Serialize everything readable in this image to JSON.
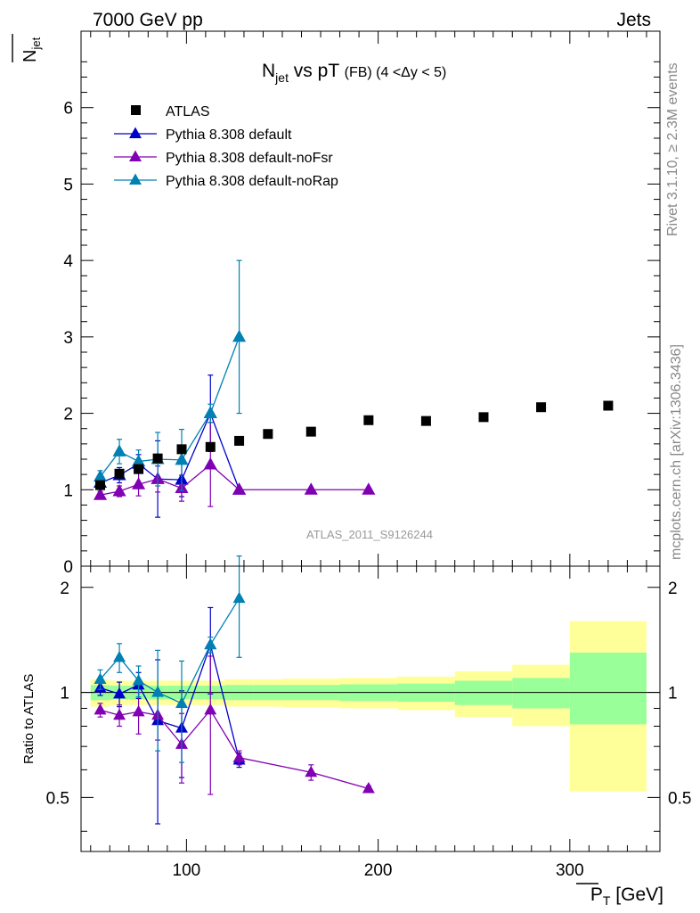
{
  "header": {
    "left": "7000 GeV pp",
    "right": "Jets",
    "side_top": "Rivet 3.1.10, ≥ 2.3M events",
    "side_bottom": "mcplots.cern.ch [arXiv:1306.3436]",
    "watermark": "ATLAS_2011_S9126244"
  },
  "chart_data": {
    "type": "scatter",
    "title": {
      "prefix": "N",
      "sub": "jet",
      "main": " vs pT ",
      "fb": "(FB)",
      "range": " (4 <Δy < 5)"
    },
    "ylabel_main": {
      "base": "N",
      "sub": "jet"
    },
    "xlabel": {
      "base": "P",
      "sub": "T",
      "unit": " [GeV]"
    },
    "ylabel_ratio": "Ratio to ATLAS",
    "xlim": [
      45,
      347
    ],
    "ylim_main": [
      0,
      7
    ],
    "ylim_ratio": [
      0.35,
      2.3
    ],
    "x_ticks": [
      100,
      200,
      300
    ],
    "y_ticks_main": [
      0,
      1,
      2,
      3,
      4,
      5,
      6
    ],
    "y_ticks_ratio": [
      0.5,
      1,
      2
    ],
    "legend_position": "top-left",
    "data": {
      "name": "ATLAS",
      "x": [
        55,
        65,
        75,
        85,
        97.5,
        112.5,
        127.5,
        142.5,
        165,
        195,
        225,
        255,
        285,
        320
      ],
      "y": [
        1.06,
        1.21,
        1.27,
        1.41,
        1.53,
        1.56,
        1.64,
        1.73,
        1.76,
        1.91,
        1.9,
        1.95,
        2.08,
        2.1
      ],
      "bands": [
        {
          "x": [
            50,
            60
          ],
          "yellow": [
            0.91,
            1.09
          ],
          "green": [
            0.95,
            1.05
          ]
        },
        {
          "x": [
            60,
            70
          ],
          "yellow": [
            0.92,
            1.08
          ],
          "green": [
            0.955,
            1.045
          ]
        },
        {
          "x": [
            70,
            80
          ],
          "yellow": [
            0.92,
            1.08
          ],
          "green": [
            0.955,
            1.045
          ]
        },
        {
          "x": [
            80,
            90
          ],
          "yellow": [
            0.92,
            1.08
          ],
          "green": [
            0.955,
            1.045
          ]
        },
        {
          "x": [
            90,
            105
          ],
          "yellow": [
            0.92,
            1.08
          ],
          "green": [
            0.955,
            1.045
          ]
        },
        {
          "x": [
            105,
            120
          ],
          "yellow": [
            0.92,
            1.08
          ],
          "green": [
            0.955,
            1.045
          ]
        },
        {
          "x": [
            120,
            135
          ],
          "yellow": [
            0.91,
            1.09
          ],
          "green": [
            0.95,
            1.05
          ]
        },
        {
          "x": [
            135,
            150
          ],
          "yellow": [
            0.91,
            1.09
          ],
          "green": [
            0.95,
            1.05
          ]
        },
        {
          "x": [
            150,
            180
          ],
          "yellow": [
            0.905,
            1.095
          ],
          "green": [
            0.95,
            1.05
          ]
        },
        {
          "x": [
            180,
            210
          ],
          "yellow": [
            0.9,
            1.1
          ],
          "green": [
            0.945,
            1.055
          ]
        },
        {
          "x": [
            210,
            240
          ],
          "yellow": [
            0.89,
            1.11
          ],
          "green": [
            0.94,
            1.06
          ]
        },
        {
          "x": [
            240,
            270
          ],
          "yellow": [
            0.85,
            1.15
          ],
          "green": [
            0.92,
            1.08
          ]
        },
        {
          "x": [
            270,
            300
          ],
          "yellow": [
            0.8,
            1.2
          ],
          "green": [
            0.9,
            1.1
          ]
        },
        {
          "x": [
            300,
            340
          ],
          "yellow": [
            0.52,
            1.6
          ],
          "green": [
            0.81,
            1.3
          ]
        }
      ]
    },
    "series": [
      {
        "name": "Pythia 8.308 default",
        "color": "#0000cc",
        "x": [
          55,
          65,
          75,
          85,
          97.5,
          112.5,
          127.5
        ],
        "y": [
          1.09,
          1.19,
          1.34,
          1.14,
          1.13,
          2.0,
          1.0
        ],
        "err": [
          0.06,
          0.1,
          0.12,
          0.5,
          0.22,
          0.5,
          0.03
        ],
        "ratio": [
          1.03,
          0.99,
          1.05,
          0.83,
          0.79,
          1.37,
          0.64
        ],
        "ratio_err": [
          0.05,
          0.08,
          0.09,
          0.41,
          0.22,
          0.38,
          0.03
        ]
      },
      {
        "name": "Pythia 8.308 default-noFsr",
        "color": "#8000b3",
        "x": [
          55,
          65,
          75,
          85,
          97.5,
          112.5,
          127.5,
          165,
          195
        ],
        "y": [
          0.93,
          0.98,
          1.07,
          1.14,
          1.02,
          1.33,
          1.0,
          1.0,
          1.0
        ],
        "err": [
          0.05,
          0.07,
          0.15,
          0.17,
          0.17,
          0.55,
          0.02,
          0.02,
          0.02
        ],
        "ratio": [
          0.89,
          0.86,
          0.88,
          0.86,
          0.71,
          0.89,
          0.65,
          0.59,
          0.53
        ],
        "ratio_err": [
          0.04,
          0.06,
          0.12,
          0.13,
          0.16,
          0.38,
          0.03,
          0.03,
          0.01
        ]
      },
      {
        "name": "Pythia 8.308 default-noRap",
        "color": "#0080b3",
        "x": [
          55,
          65,
          75,
          85,
          97.5,
          112.5,
          127.5
        ],
        "y": [
          1.17,
          1.5,
          1.37,
          1.4,
          1.39,
          2.0,
          3.0
        ],
        "err": [
          0.08,
          0.16,
          0.15,
          0.35,
          0.4,
          0.12,
          1.0
        ],
        "ratio": [
          1.09,
          1.26,
          1.08,
          1.0,
          0.93,
          1.37,
          1.86
        ],
        "ratio_err": [
          0.07,
          0.12,
          0.11,
          0.32,
          0.3,
          0.07,
          0.6
        ]
      }
    ]
  }
}
